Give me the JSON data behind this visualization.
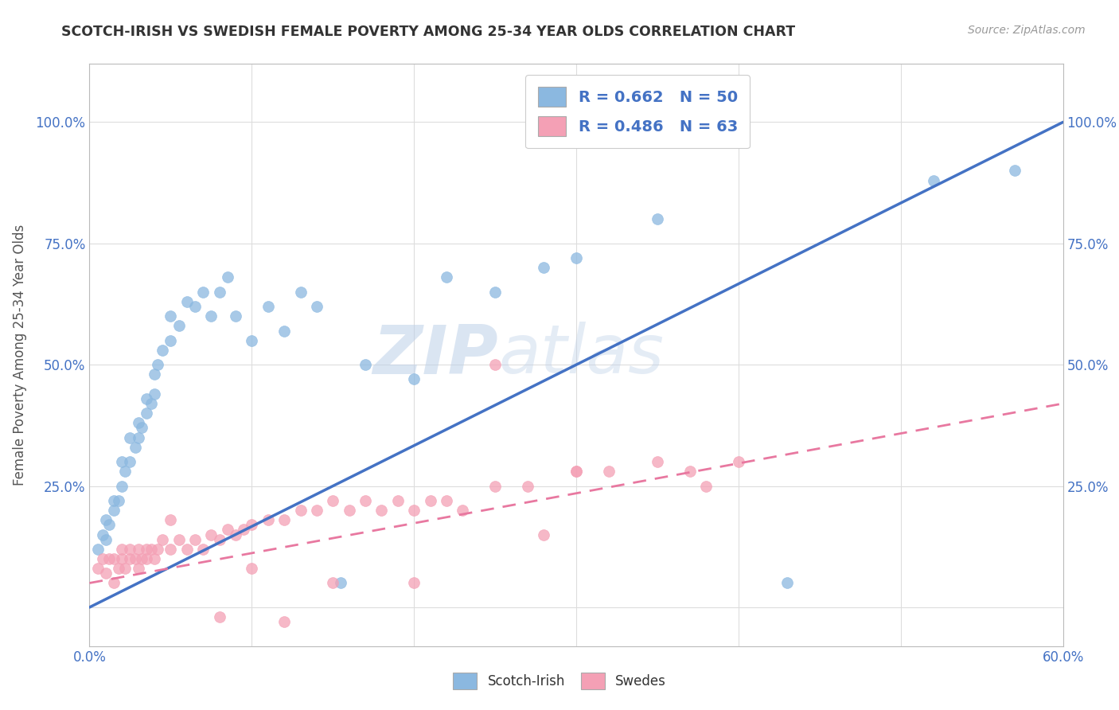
{
  "title": "SCOTCH-IRISH VS SWEDISH FEMALE POVERTY AMONG 25-34 YEAR OLDS CORRELATION CHART",
  "source": "Source: ZipAtlas.com",
  "ylabel": "Female Poverty Among 25-34 Year Olds",
  "xlim": [
    0.0,
    0.6
  ],
  "ylim": [
    -0.08,
    1.12
  ],
  "blue_color": "#8BB8E0",
  "pink_color": "#F4A0B5",
  "blue_line_color": "#4472C4",
  "pink_line_color": "#E878A0",
  "grid_color": "#DDDDDD",
  "background_color": "#FFFFFF",
  "watermark_zip": "ZIP",
  "watermark_atlas": "atlas",
  "legend_blue_label": "R = 0.662   N = 50",
  "legend_pink_label": "R = 0.486   N = 63",
  "legend_scotchirish": "Scotch-Irish",
  "legend_swedes": "Swedes",
  "blue_line_x0": 0.0,
  "blue_line_y0": 0.0,
  "blue_line_x1": 0.6,
  "blue_line_y1": 1.0,
  "pink_line_x0": 0.0,
  "pink_line_y0": 0.05,
  "pink_line_x1": 0.6,
  "pink_line_y1": 0.42,
  "scotch_irish_x": [
    0.005,
    0.008,
    0.01,
    0.01,
    0.012,
    0.015,
    0.015,
    0.018,
    0.02,
    0.02,
    0.022,
    0.025,
    0.025,
    0.028,
    0.03,
    0.03,
    0.032,
    0.035,
    0.035,
    0.038,
    0.04,
    0.04,
    0.042,
    0.045,
    0.05,
    0.05,
    0.055,
    0.06,
    0.065,
    0.07,
    0.075,
    0.08,
    0.085,
    0.09,
    0.1,
    0.11,
    0.12,
    0.13,
    0.14,
    0.155,
    0.17,
    0.2,
    0.22,
    0.25,
    0.28,
    0.3,
    0.35,
    0.43,
    0.52,
    0.57
  ],
  "scotch_irish_y": [
    0.12,
    0.15,
    0.14,
    0.18,
    0.17,
    0.2,
    0.22,
    0.22,
    0.25,
    0.3,
    0.28,
    0.3,
    0.35,
    0.33,
    0.35,
    0.38,
    0.37,
    0.4,
    0.43,
    0.42,
    0.44,
    0.48,
    0.5,
    0.53,
    0.55,
    0.6,
    0.58,
    0.63,
    0.62,
    0.65,
    0.6,
    0.65,
    0.68,
    0.6,
    0.55,
    0.62,
    0.57,
    0.65,
    0.62,
    0.05,
    0.5,
    0.47,
    0.68,
    0.65,
    0.7,
    0.72,
    0.8,
    0.05,
    0.88,
    0.9
  ],
  "swedes_x": [
    0.005,
    0.008,
    0.01,
    0.012,
    0.015,
    0.015,
    0.018,
    0.02,
    0.02,
    0.022,
    0.025,
    0.025,
    0.028,
    0.03,
    0.03,
    0.032,
    0.035,
    0.035,
    0.038,
    0.04,
    0.042,
    0.045,
    0.05,
    0.055,
    0.06,
    0.065,
    0.07,
    0.075,
    0.08,
    0.085,
    0.09,
    0.095,
    0.1,
    0.11,
    0.12,
    0.13,
    0.14,
    0.15,
    0.16,
    0.17,
    0.18,
    0.19,
    0.2,
    0.21,
    0.22,
    0.23,
    0.25,
    0.27,
    0.3,
    0.32,
    0.35,
    0.37,
    0.38,
    0.4,
    0.25,
    0.28,
    0.3,
    0.2,
    0.15,
    0.12,
    0.1,
    0.08,
    0.05
  ],
  "swedes_y": [
    0.08,
    0.1,
    0.07,
    0.1,
    0.05,
    0.1,
    0.08,
    0.1,
    0.12,
    0.08,
    0.1,
    0.12,
    0.1,
    0.08,
    0.12,
    0.1,
    0.12,
    0.1,
    0.12,
    0.1,
    0.12,
    0.14,
    0.12,
    0.14,
    0.12,
    0.14,
    0.12,
    0.15,
    0.14,
    0.16,
    0.15,
    0.16,
    0.17,
    0.18,
    0.18,
    0.2,
    0.2,
    0.22,
    0.2,
    0.22,
    0.2,
    0.22,
    0.2,
    0.22,
    0.22,
    0.2,
    0.25,
    0.25,
    0.28,
    0.28,
    0.3,
    0.28,
    0.25,
    0.3,
    0.5,
    0.15,
    0.28,
    0.05,
    0.05,
    -0.03,
    0.08,
    -0.02,
    0.18
  ]
}
